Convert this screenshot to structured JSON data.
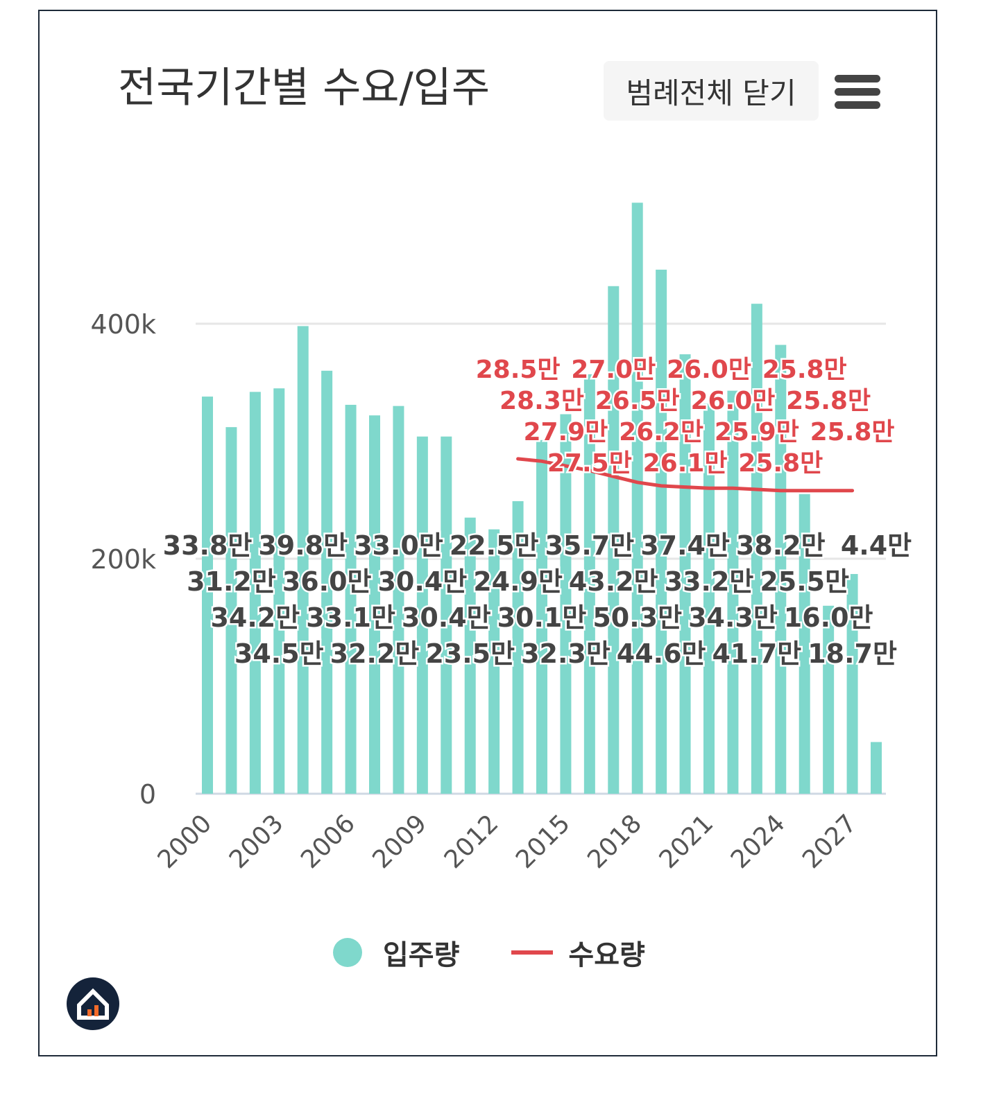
{
  "title": "전국기간별 수요/입주",
  "legend_toggle_label": "범례전체 닫기",
  "menu_icon": "hamburger-icon",
  "colors": {
    "supply": "#7fd8cc",
    "demand": "#e0474c",
    "grid": "#e6e6e6",
    "text": "#444444"
  },
  "chart_data": {
    "type": "bar+line",
    "title": "전국기간별 수요/입주",
    "x": [
      2000,
      2001,
      2002,
      2003,
      2004,
      2005,
      2006,
      2007,
      2008,
      2009,
      2010,
      2011,
      2012,
      2013,
      2014,
      2015,
      2016,
      2017,
      2018,
      2019,
      2020,
      2021,
      2022,
      2023,
      2024,
      2025,
      2026,
      2027,
      2028
    ],
    "x_tick_labels": [
      "2000",
      "2003",
      "2006",
      "2009",
      "2012",
      "2015",
      "2018",
      "2021",
      "2024",
      "2027"
    ],
    "y_tick_labels": [
      "0",
      "200k",
      "400k"
    ],
    "ylim": [
      0,
      500000
    ],
    "grid": true,
    "legend_position": "bottom",
    "series": [
      {
        "name": "입주량",
        "type": "bar",
        "values": [
          338000,
          312000,
          342000,
          345000,
          398000,
          360000,
          331000,
          322000,
          330000,
          304000,
          304000,
          235000,
          225000,
          249000,
          301000,
          323000,
          357000,
          432000,
          503000,
          446000,
          374000,
          332000,
          343000,
          417000,
          382000,
          255000,
          160000,
          187000,
          44000
        ],
        "labels": [
          "33.8만",
          "31.2만",
          "34.2만",
          "34.5만",
          "39.8만",
          "36.0만",
          "33.1만",
          "32.2만",
          "33.0만",
          "30.4만",
          "30.4만",
          "23.5만",
          "22.5만",
          "24.9만",
          "30.1만",
          "32.3만",
          "35.7만",
          "43.2만",
          "50.3만",
          "44.6만",
          "37.4만",
          "33.2만",
          "34.3만",
          "41.7만",
          "38.2만",
          "25.5만",
          "16.0만",
          "18.7만",
          "4.4만"
        ]
      },
      {
        "name": "수요량",
        "type": "line",
        "x": [
          2013,
          2014,
          2015,
          2016,
          2017,
          2018,
          2019,
          2020,
          2021,
          2022,
          2023,
          2024,
          2025,
          2026,
          2027
        ],
        "values": [
          285000,
          283000,
          279000,
          275000,
          270000,
          265000,
          262000,
          261000,
          260000,
          260000,
          259000,
          258000,
          258000,
          258000,
          258000
        ],
        "labels": [
          "28.5만",
          "28.3만",
          "27.9만",
          "27.5만",
          "27.0만",
          "26.5만",
          "26.2만",
          "26.1만",
          "26.0만",
          "26.0만",
          "25.9만",
          "25.8만",
          "25.8만",
          "25.8만",
          "25.8만"
        ]
      }
    ]
  }
}
